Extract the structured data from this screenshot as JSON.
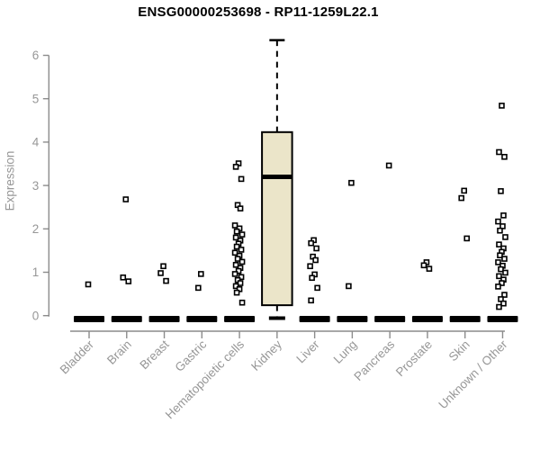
{
  "chart_data": {
    "type": "boxplot",
    "title": "ENSG00000253698 - RP11-1259L22.1",
    "ylabel": "Expression",
    "xlabel": "",
    "ylim": [
      0,
      6.5
    ],
    "yticks": [
      0,
      1,
      2,
      3,
      4,
      5,
      6
    ],
    "grid": false,
    "legend": null,
    "point_style": "open-square",
    "categories": [
      "Bladder",
      "Brain",
      "Breast",
      "Gastric",
      "Hematopoietic cells",
      "Kidney",
      "Liver",
      "Lung",
      "Pancreas",
      "Prostate",
      "Skin",
      "Unknown / Other"
    ],
    "colors": {
      "box_fill": "#EBE5C9",
      "box_stroke": "#000000",
      "point": "#000000",
      "point_fill": "#ffffff",
      "zero_bar": "#000000",
      "axis": "#8C8C8C",
      "tick_label": "#979797",
      "title": "#000000"
    },
    "groups": [
      {
        "category": "Bladder",
        "zero_cluster": true,
        "points": [
          0.72
        ]
      },
      {
        "category": "Brain",
        "zero_cluster": true,
        "points": [
          2.68,
          0.88,
          0.79
        ]
      },
      {
        "category": "Breast",
        "zero_cluster": true,
        "points": [
          1.14,
          0.98,
          0.8
        ]
      },
      {
        "category": "Gastric",
        "zero_cluster": true,
        "points": [
          0.96,
          0.64
        ]
      },
      {
        "category": "Hematopoietic cells",
        "zero_cluster": true,
        "points": [
          3.51,
          3.43,
          3.15,
          2.55,
          2.47,
          2.08,
          2.01,
          1.94,
          1.87,
          1.8,
          1.73,
          1.66,
          1.59,
          1.52,
          1.45,
          1.38,
          1.31,
          1.24,
          1.17,
          1.1,
          1.03,
          0.96,
          0.89,
          0.82,
          0.75,
          0.68,
          0.61,
          0.53,
          0.3
        ]
      },
      {
        "category": "Kidney",
        "zero_cluster": false,
        "points": [],
        "box": {
          "whisker_low": 0,
          "q1": 0.24,
          "median": 3.2,
          "q3": 4.23,
          "whisker_high": 6.35
        }
      },
      {
        "category": "Liver",
        "zero_cluster": true,
        "points": [
          1.74,
          1.67,
          1.55,
          1.36,
          1.28,
          1.14,
          0.95,
          0.87,
          0.64,
          0.35
        ]
      },
      {
        "category": "Lung",
        "zero_cluster": true,
        "points": [
          3.06,
          0.68
        ]
      },
      {
        "category": "Pancreas",
        "zero_cluster": true,
        "points": [
          3.46
        ]
      },
      {
        "category": "Prostate",
        "zero_cluster": true,
        "points": [
          1.23,
          1.16,
          1.08
        ]
      },
      {
        "category": "Skin",
        "zero_cluster": true,
        "points": [
          2.88,
          2.71,
          1.78
        ]
      },
      {
        "category": "Unknown / Other",
        "zero_cluster": true,
        "points": [
          4.84,
          3.77,
          3.66,
          2.87,
          2.31,
          2.17,
          2.06,
          1.96,
          1.81,
          1.64,
          1.55,
          1.47,
          1.39,
          1.31,
          1.23,
          1.15,
          1.07,
          0.99,
          0.91,
          0.83,
          0.75,
          0.67,
          0.48,
          0.38,
          0.28,
          0.2
        ]
      }
    ]
  }
}
